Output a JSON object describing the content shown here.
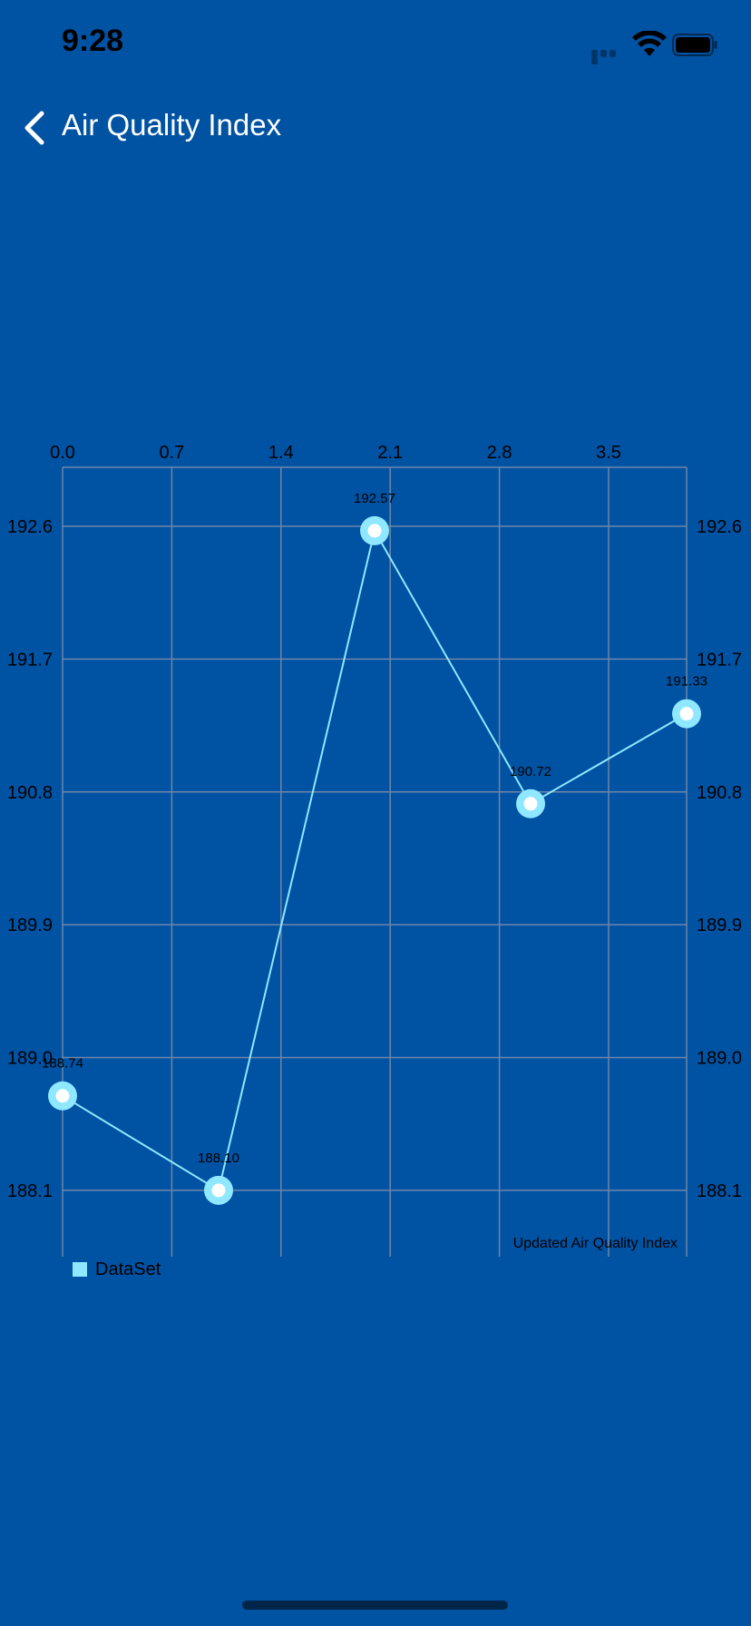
{
  "status_bar": {
    "time": "9:28",
    "icons": [
      "signal-icon",
      "wifi-icon",
      "battery-icon"
    ]
  },
  "nav": {
    "back_icon": "chevron-left-icon",
    "title": "Air Quality Index"
  },
  "colors": {
    "background": "#0052a3",
    "grid": "#6f86a8",
    "line": "#8fe8ff",
    "marker_fill": "#ffffff",
    "axis_text": "#000000",
    "title_text": "#ffffff"
  },
  "chart_data": {
    "type": "line",
    "description": "Updated Air Quality Index",
    "x": [
      0,
      1,
      2,
      3,
      4
    ],
    "series": [
      {
        "name": "DataSet",
        "values": [
          188.74,
          188.1,
          192.57,
          190.72,
          191.33
        ],
        "value_labels": [
          "188.74",
          "188.10",
          "192.57",
          "190.72",
          "191.33"
        ]
      }
    ],
    "x_ticks": [
      "0.0",
      "0.7",
      "1.4",
      "2.1",
      "2.8",
      "3.5"
    ],
    "x_tick_values": [
      0,
      0.7,
      1.4,
      2.1,
      2.8,
      3.5
    ],
    "y_ticks": [
      "192.6",
      "191.7",
      "190.8",
      "189.9",
      "189.0",
      "188.1"
    ],
    "y_tick_values": [
      192.6,
      191.7,
      190.8,
      189.9,
      189.0,
      188.1
    ],
    "xlim": [
      0,
      4
    ],
    "ylim": [
      187.65,
      193.0
    ],
    "x_axis_position": "top",
    "y_axis_labels": "left-and-right",
    "grid": true,
    "legend": "bottom-left"
  }
}
